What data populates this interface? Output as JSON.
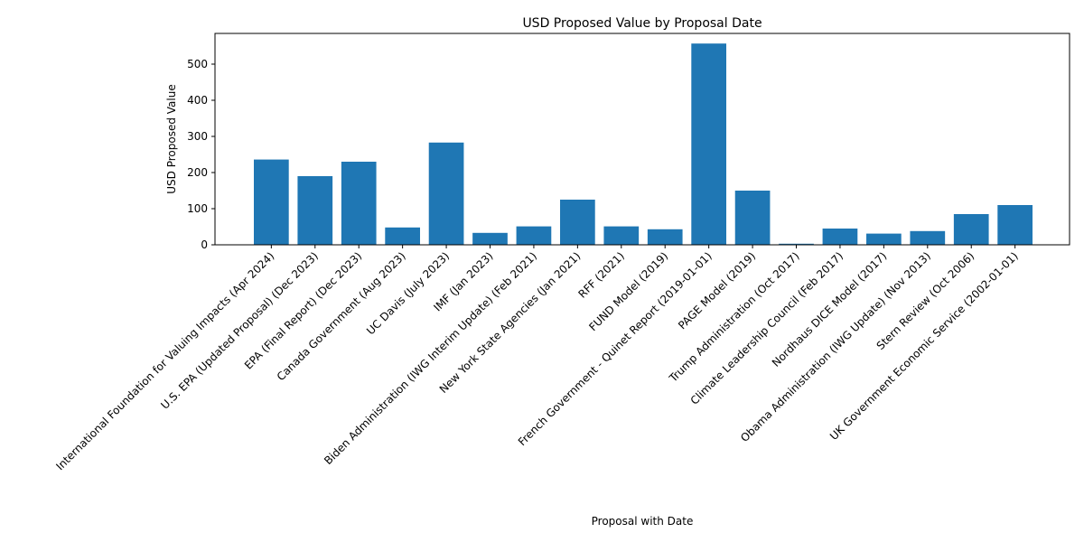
{
  "chart_data": {
    "type": "bar",
    "title": "USD Proposed Value by Proposal Date",
    "xlabel": "Proposal with Date",
    "ylabel": "USD Proposed Value",
    "ylim": [
      0,
      585
    ],
    "yticks": [
      0,
      100,
      200,
      300,
      400,
      500
    ],
    "grid": false,
    "bar_color": "#1f77b4",
    "categories": [
      "International Foundation for Valuing Impacts (Apr 2024)",
      "U.S. EPA (Updated Proposal) (Dec 2023)",
      "EPA (Final Report) (Dec 2023)",
      "Canada Government (Aug 2023)",
      "UC Davis (July 2023)",
      "IMF (Jan 2023)",
      "Biden Administration (IWG Interim Update) (Feb 2021)",
      "New York State Agencies (Jan 2021)",
      "RFF (2021)",
      "FUND Model (2019)",
      "French Government - Quinet Report (2019-01-01)",
      "PAGE Model (2019)",
      "Trump Administration (Oct 2017)",
      "Climate Leadership Council (Feb 2017)",
      "Nordhaus DICE Model (2017)",
      "Obama Administration (IWG Update) (Nov 2013)",
      "Stern Review (Oct 2006)",
      "UK Government Economic Service (2002-01-01)"
    ],
    "values": [
      236,
      190,
      230,
      48,
      283,
      33,
      51,
      125,
      51,
      43,
      557,
      150,
      3,
      45,
      31,
      38,
      85,
      110
    ]
  }
}
